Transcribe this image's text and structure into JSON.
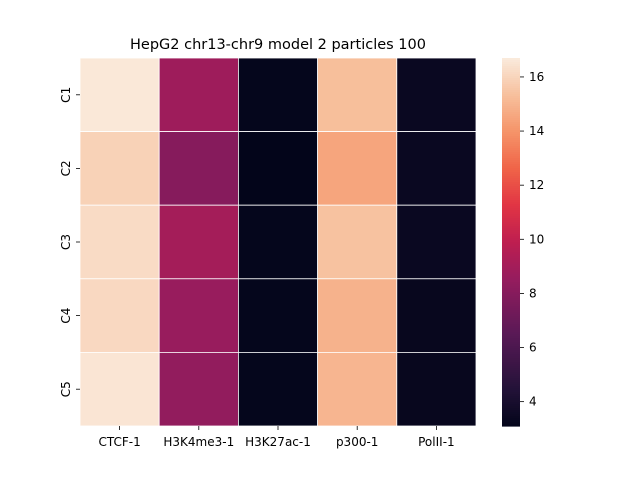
{
  "chart_data": {
    "type": "heatmap",
    "title": "HepG2 chr13-chr9 model 2 particles 100",
    "xlabel": "",
    "ylabel": "",
    "x_categories": [
      "CTCF-1",
      "H3K4me3-1",
      "H3K27ac-1",
      "p300-1",
      "PolII-1"
    ],
    "y_categories": [
      "C1",
      "C2",
      "C3",
      "C4",
      "C5"
    ],
    "values": [
      [
        16.6,
        8.8,
        3.2,
        15.3,
        3.4
      ],
      [
        15.9,
        8.0,
        3.1,
        14.5,
        3.4
      ],
      [
        16.2,
        9.0,
        3.2,
        15.4,
        3.4
      ],
      [
        16.1,
        8.6,
        3.2,
        14.9,
        3.3
      ],
      [
        16.5,
        8.4,
        3.2,
        15.0,
        3.3
      ]
    ],
    "colormap": "rocket",
    "colorbar": {
      "range": [
        3.1,
        16.7
      ],
      "ticks": [
        4,
        6,
        8,
        10,
        12,
        14,
        16
      ]
    },
    "grid": false,
    "cell_separator_color": "#ffffff"
  }
}
